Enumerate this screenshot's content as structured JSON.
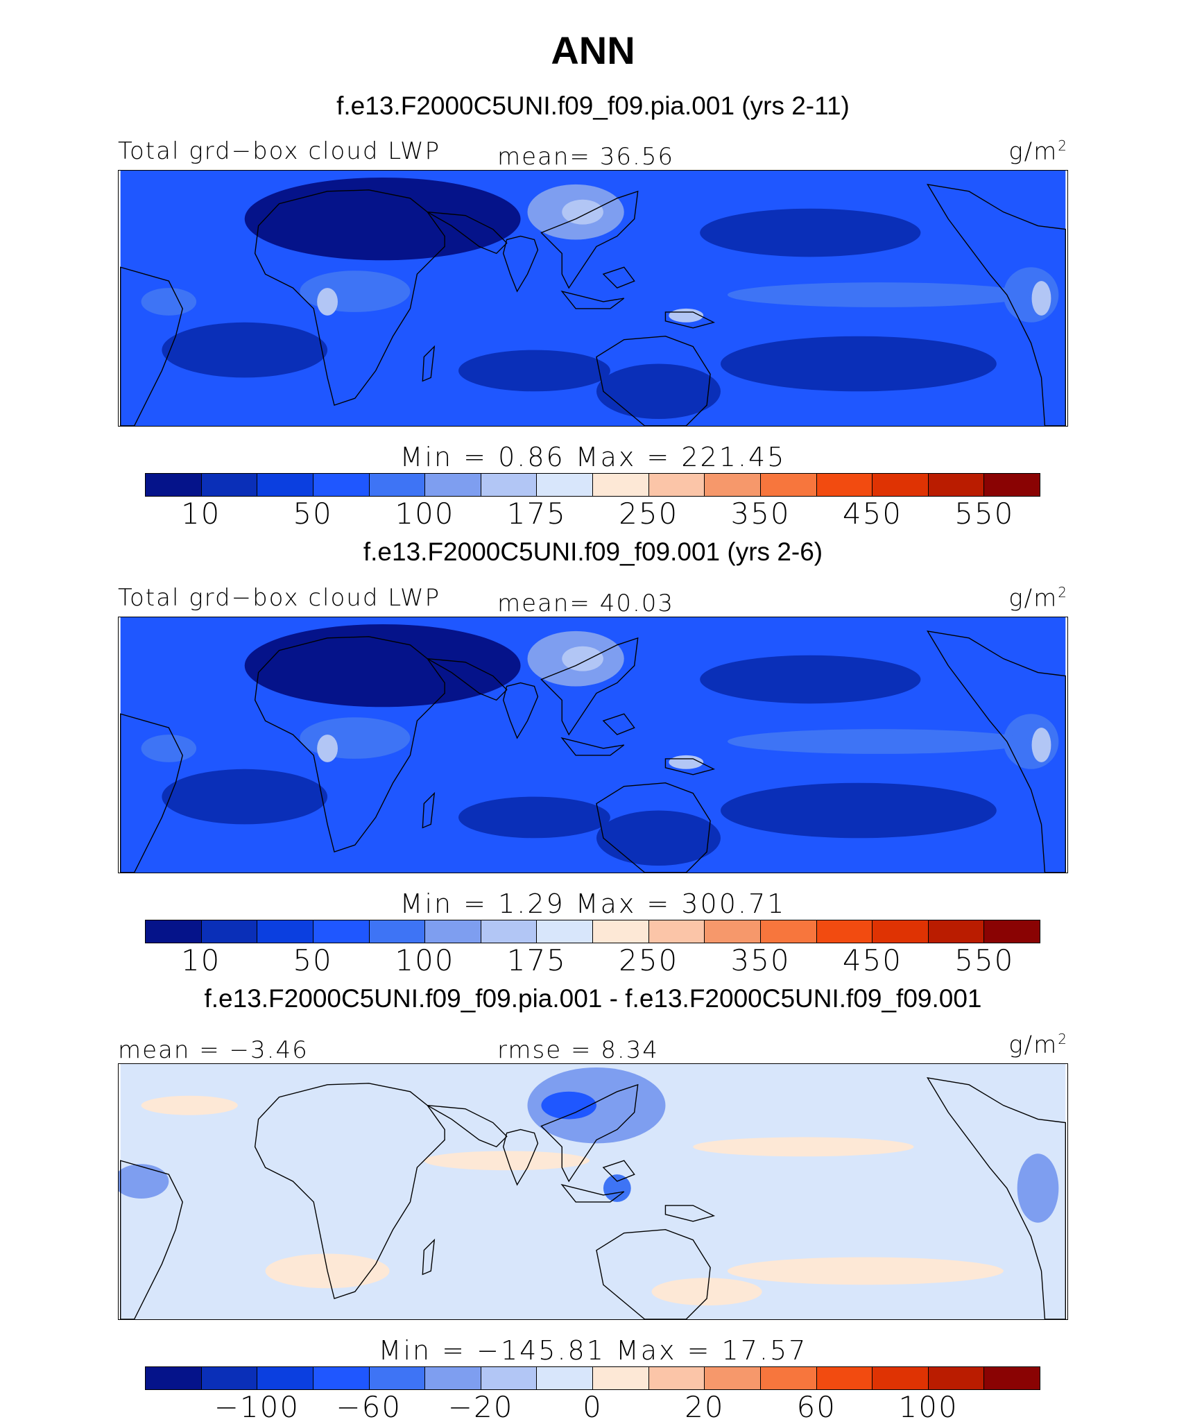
{
  "title": "ANN",
  "colors": {
    "top_palette": [
      "#05138a",
      "#0a2fb8",
      "#0b3fe0",
      "#1f57ff",
      "#3e74f5",
      "#7e9ef0",
      "#b2c6f5",
      "#d8e6fb",
      "#fde8d6",
      "#fbc5a8",
      "#f6986b",
      "#f7763d",
      "#f24b10",
      "#df3303",
      "#ba1c00",
      "#8a0303"
    ],
    "diff_palette": [
      "#05138a",
      "#0a2fb8",
      "#0b3fe0",
      "#1f57ff",
      "#3e74f5",
      "#7e9ef0",
      "#b2c6f5",
      "#d8e6fb",
      "#fde8d6",
      "#fbc5a8",
      "#f6986b",
      "#f7763d",
      "#f24b10",
      "#df3303",
      "#ba1c00",
      "#8a0303"
    ]
  },
  "panels": [
    {
      "case_title": "f.e13.F2000C5UNI.f09_f09.pia.001 (yrs 2-11)",
      "left_label": "Total grd−box cloud LWP",
      "center_label": "mean=  36.56",
      "units": "g/m",
      "units_sup": "2",
      "minmax": "Min =    0.86  Max =  221.45",
      "ticks": [
        "10",
        "50",
        "100",
        "175",
        "250",
        "350",
        "450",
        "550"
      ],
      "field": {
        "variable": "Total grd-box cloud LWP",
        "mean": 36.56,
        "min": 0.86,
        "max": 221.45
      }
    },
    {
      "case_title": "f.e13.F2000C5UNI.f09_f09.001 (yrs 2-6)",
      "left_label": "Total grd−box cloud LWP",
      "center_label": "mean=  40.03",
      "units": "g/m",
      "units_sup": "2",
      "minmax": "Min =    1.29  Max =  300.71",
      "ticks": [
        "10",
        "50",
        "100",
        "175",
        "250",
        "350",
        "450",
        "550"
      ],
      "field": {
        "variable": "Total grd-box cloud LWP",
        "mean": 40.03,
        "min": 1.29,
        "max": 300.71
      }
    },
    {
      "case_title": "f.e13.F2000C5UNI.f09_f09.pia.001 - f.e13.F2000C5UNI.f09_f09.001",
      "left_label": "mean =  −3.46",
      "center_label": "rmse =    8.34",
      "units": "g/m",
      "units_sup": "2",
      "minmax": "Min = −145.81  Max =   17.57",
      "ticks": [
        "−100",
        "−60",
        "−20",
        "0",
        "20",
        "60",
        "100"
      ],
      "field": {
        "mean": -3.46,
        "rmse": 8.34,
        "min": -145.81,
        "max": 17.57
      }
    }
  ]
}
